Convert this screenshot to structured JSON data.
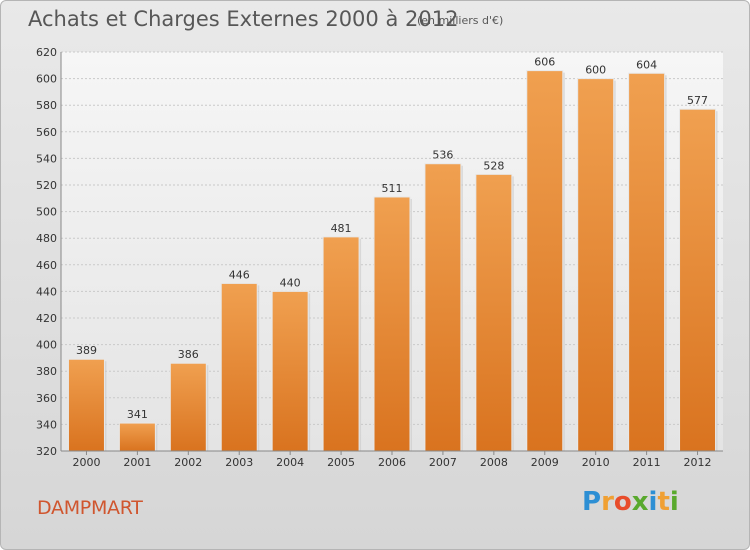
{
  "header": {
    "title": "Achats et Charges Externes 2000 à 2012",
    "unit": "(en milliers d'€)"
  },
  "footer": {
    "commune": "DAMPMART",
    "logo_letters": [
      "P",
      "r",
      "o",
      "x",
      "i",
      "t",
      "i"
    ],
    "logo_colors": [
      "#2d8fd4",
      "#f0a033",
      "#e84d2b",
      "#59a92d",
      "#2d8fd4",
      "#f0a033",
      "#59a92d"
    ]
  },
  "chart_data": {
    "type": "bar",
    "categories": [
      "2000",
      "2001",
      "2002",
      "2003",
      "2004",
      "2005",
      "2006",
      "2007",
      "2008",
      "2009",
      "2010",
      "2011",
      "2012"
    ],
    "values": [
      389,
      341,
      386,
      446,
      440,
      481,
      511,
      536,
      528,
      606,
      600,
      604,
      577
    ],
    "ylim": [
      320,
      620
    ],
    "yticks": [
      320,
      340,
      360,
      380,
      400,
      420,
      440,
      460,
      480,
      500,
      520,
      540,
      560,
      580,
      600,
      620
    ],
    "grid": true,
    "bar_color": "#f0a050",
    "bar_color_dark": "#d9731f"
  }
}
